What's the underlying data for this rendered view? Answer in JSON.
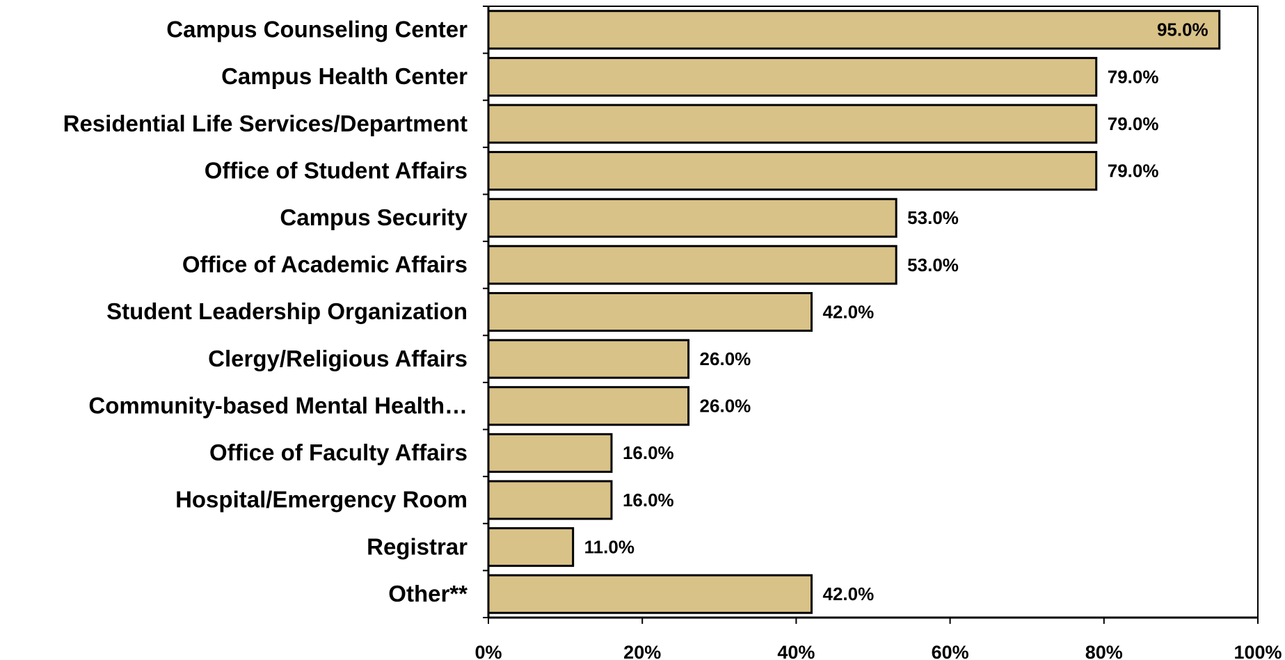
{
  "chart_data": {
    "type": "barh",
    "categories": [
      "Campus Counseling Center",
      "Campus Health Center",
      "Residential Life Services/Department",
      "Office of Student Affairs",
      "Campus Security",
      "Office of Academic Affairs",
      "Student Leadership Organization",
      "Clergy/Religious Affairs",
      "Community-based Mental Health…",
      "Office of Faculty Affairs",
      "Hospital/Emergency Room",
      "Registrar",
      "Other**"
    ],
    "values": [
      95,
      79,
      79,
      79,
      53,
      53,
      42,
      26,
      26,
      16,
      16,
      11,
      42
    ],
    "value_labels": [
      "95.0%",
      "79.0%",
      "79.0%",
      "79.0%",
      "53.0%",
      "53.0%",
      "42.0%",
      "26.0%",
      "26.0%",
      "16.0%",
      "16.0%",
      "11.0%",
      "42.0%"
    ],
    "color": "#d9c287",
    "xlim": [
      0,
      100
    ],
    "xticks": [
      {
        "value": 0,
        "label": "0%"
      },
      {
        "value": 20,
        "label": "20%"
      },
      {
        "value": 40,
        "label": "40%"
      },
      {
        "value": 60,
        "label": "60%"
      },
      {
        "value": 80,
        "label": "80%"
      },
      {
        "value": 100,
        "label": "100%"
      }
    ],
    "grid": false
  }
}
